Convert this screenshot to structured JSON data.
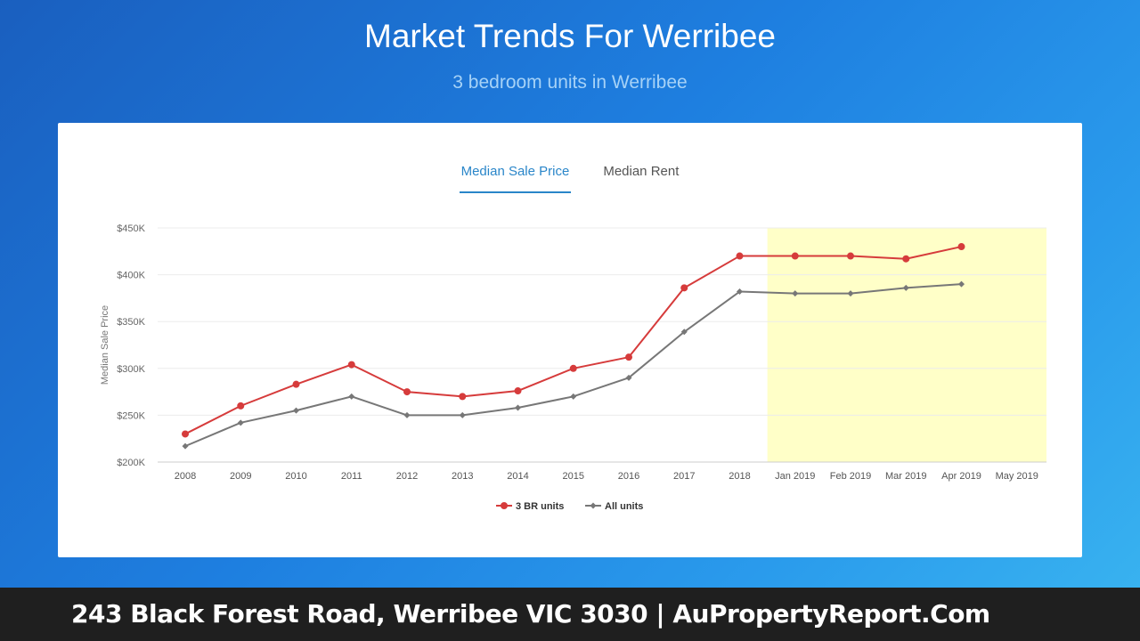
{
  "header": {
    "title": "Market Trends For Werribee",
    "subtitle": "3 bedroom units in Werribee"
  },
  "tabs": [
    {
      "label": "Median Sale Price",
      "active": true
    },
    {
      "label": "Median Rent",
      "active": false
    }
  ],
  "footer": {
    "text": "243 Black Forest Road, Werribee VIC 3030 | AuPropertyReport.Com"
  },
  "chart_data": {
    "type": "line",
    "title": "",
    "xlabel": "",
    "ylabel": "Median Sale Price",
    "categories": [
      "2008",
      "2009",
      "2010",
      "2011",
      "2012",
      "2013",
      "2014",
      "2015",
      "2016",
      "2017",
      "2018",
      "Jan 2019",
      "Feb 2019",
      "Mar 2019",
      "Apr 2019",
      "May 2019"
    ],
    "ylim": [
      200000,
      450000
    ],
    "yticks": [
      {
        "value": 450000,
        "label": "$450K"
      },
      {
        "value": 400000,
        "label": "$400K"
      },
      {
        "value": 350000,
        "label": "$350K"
      },
      {
        "value": 300000,
        "label": "$300K"
      },
      {
        "value": 250000,
        "label": "$250K"
      },
      {
        "value": 200000,
        "label": "$200K"
      }
    ],
    "highlight_categories": [
      "Jan 2019",
      "May 2019"
    ],
    "highlight_color": "#ffffc8",
    "grid": true,
    "legend_position": "bottom",
    "series": [
      {
        "name": "3 BR units",
        "color": "#d63b3b",
        "marker": "circle",
        "values": [
          230000,
          260000,
          283000,
          304000,
          275000,
          270000,
          276000,
          300000,
          312000,
          386000,
          420000,
          420000,
          420000,
          417000,
          430000,
          null
        ]
      },
      {
        "name": "All units",
        "color": "#777777",
        "marker": "diamond",
        "values": [
          217000,
          242000,
          255000,
          270000,
          250000,
          250000,
          258000,
          270000,
          290000,
          339000,
          382000,
          380000,
          380000,
          386000,
          390000,
          null
        ]
      }
    ]
  }
}
